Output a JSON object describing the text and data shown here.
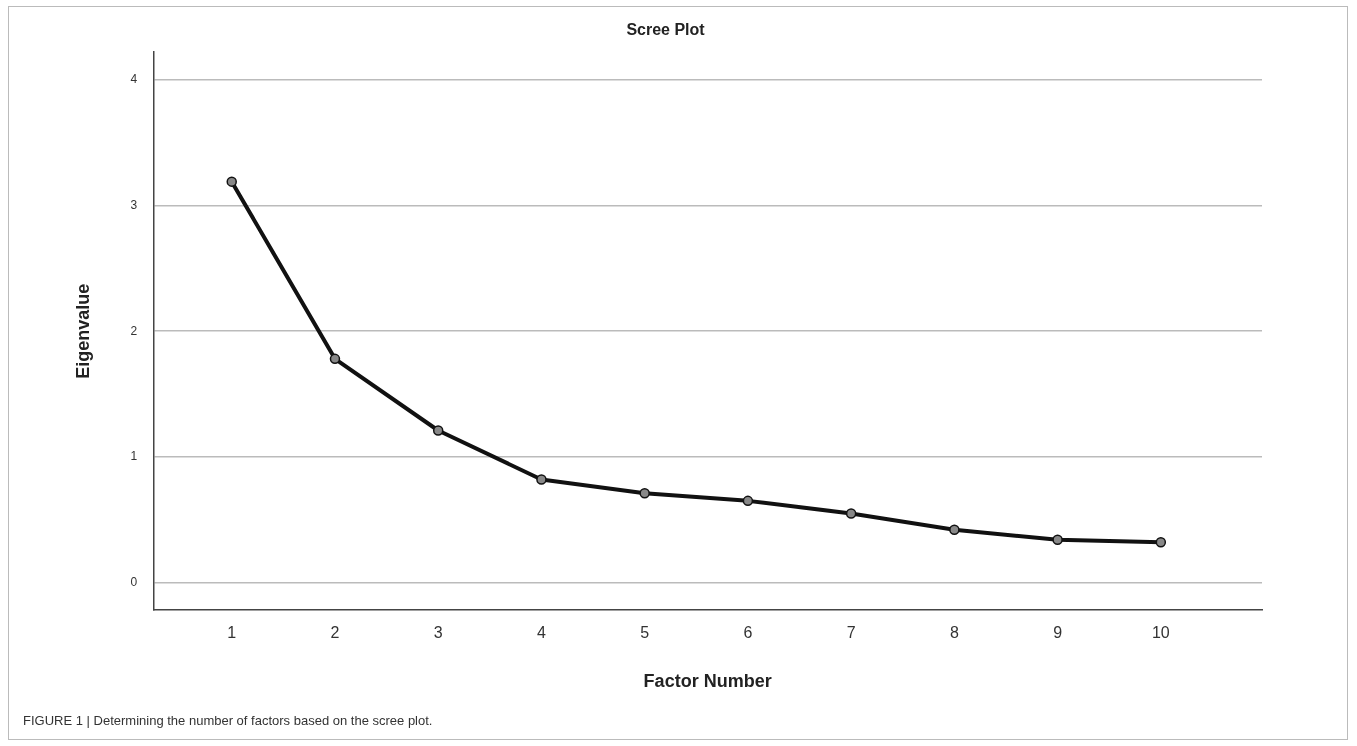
{
  "chart_data": {
    "type": "line",
    "title": "Scree Plot",
    "xlabel": "Factor Number",
    "ylabel": "Eigenvalue",
    "x": [
      1,
      2,
      3,
      4,
      5,
      6,
      7,
      8,
      9,
      10
    ],
    "values": [
      3.19,
      1.78,
      1.21,
      0.82,
      0.71,
      0.65,
      0.55,
      0.42,
      0.34,
      0.32
    ],
    "color": "#111111",
    "xlim": [
      0.24,
      10.98
    ],
    "xticks": [
      1,
      2,
      3,
      4,
      5,
      6,
      7,
      8,
      9,
      10
    ],
    "ylim": [
      -0.22,
      4.22
    ],
    "yticks": [
      0,
      1,
      2,
      3,
      4
    ],
    "grid": "y",
    "marker": "circle",
    "line_style": "solid",
    "annotations": [
      "FIGURE 1 | Determining the number of factors based on the scree plot."
    ]
  }
}
